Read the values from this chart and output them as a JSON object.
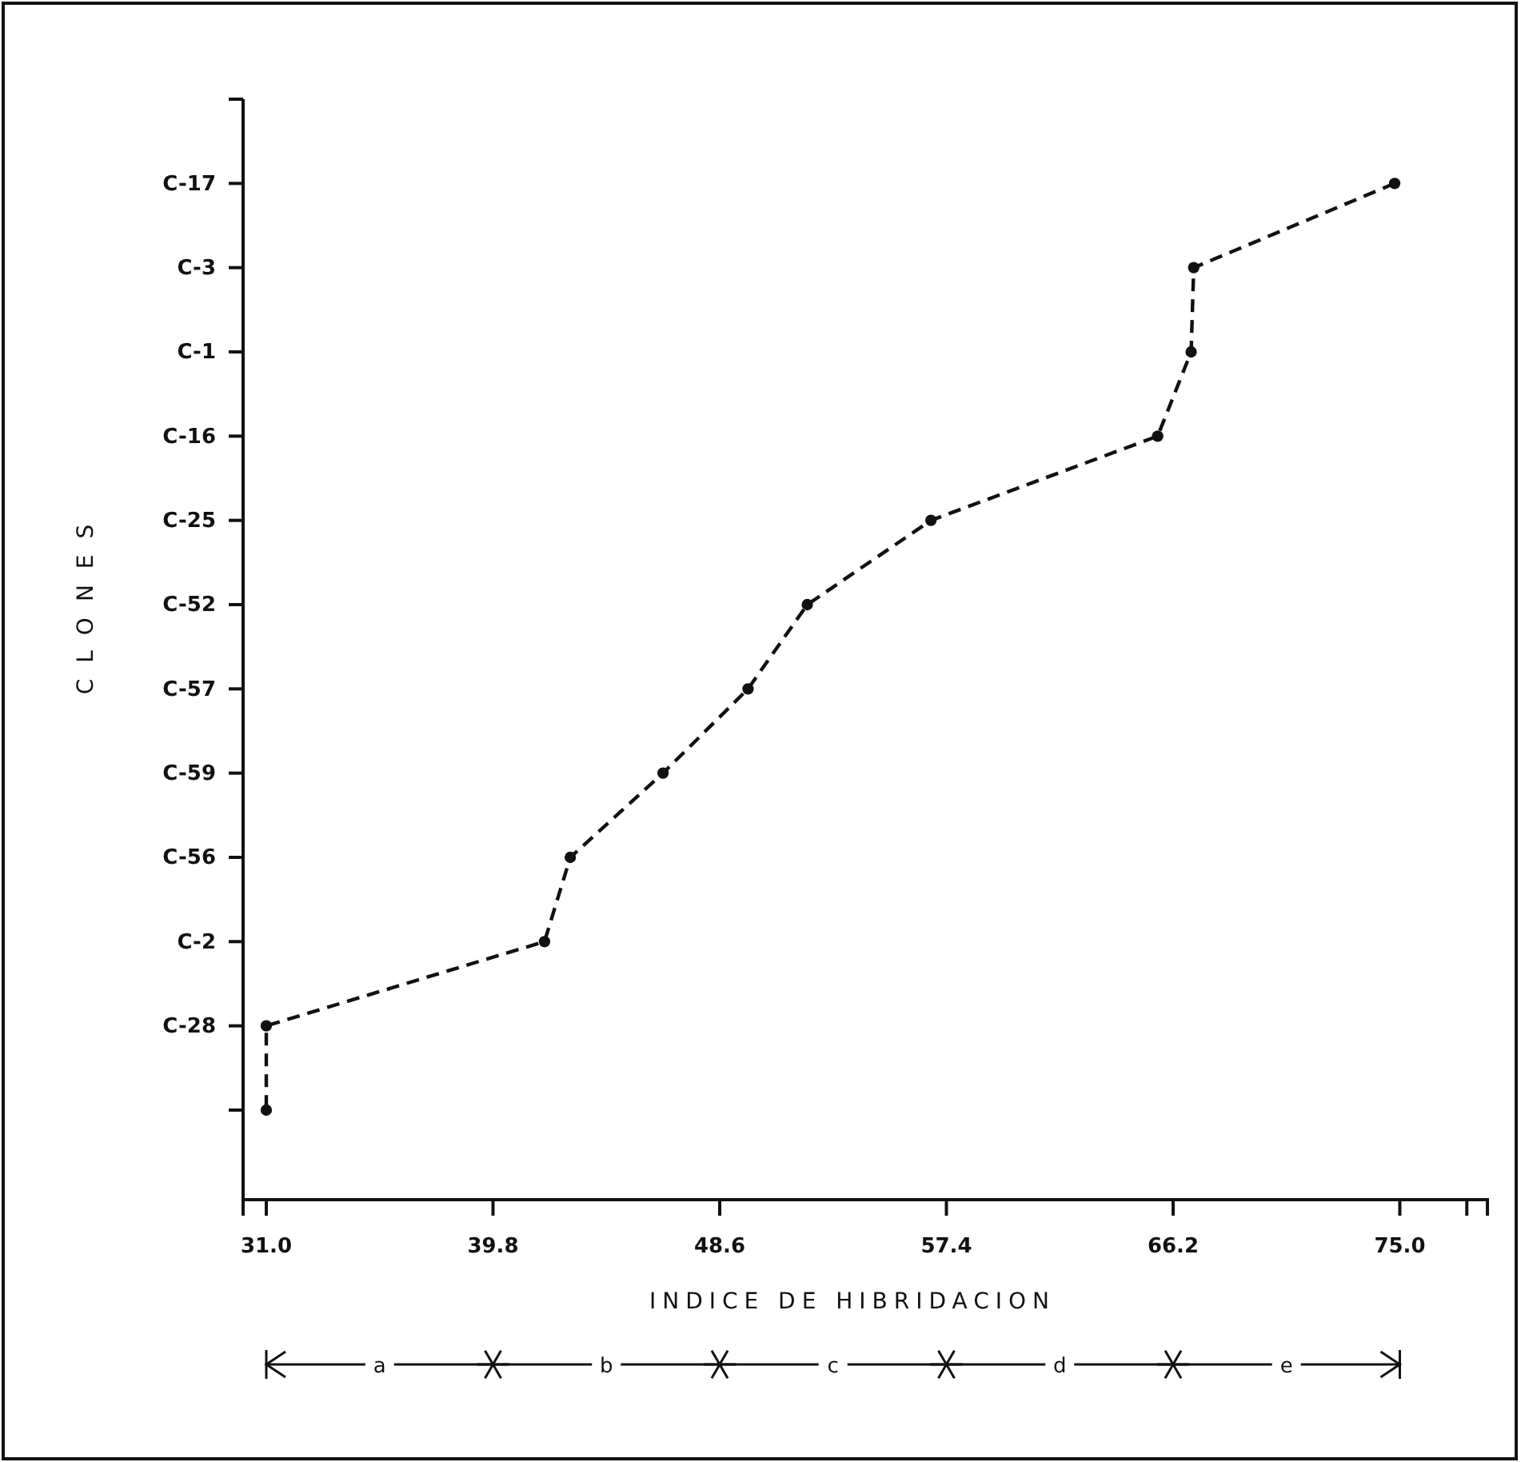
{
  "chart_data": {
    "type": "line",
    "orientation": "horizontal",
    "xlabel": "INDICE DE HIBRIDACION",
    "ylabel": "CLONES",
    "categories": [
      null,
      "C-17",
      "C-3",
      "C-1",
      "C-16",
      "C-25",
      "C-52",
      "C-57",
      "C-59",
      "C-56",
      "C-2",
      "C-28",
      null
    ],
    "series": [
      {
        "color": "#111111",
        "values": [
          null,
          74.8,
          67.0,
          66.9,
          65.6,
          56.8,
          52.0,
          49.7,
          46.4,
          42.8,
          41.8,
          31.0,
          31.0
        ]
      }
    ],
    "xlim": [
      30.1,
      78.4
    ],
    "xticks": [
      {
        "value": 31.0,
        "label": "31.0"
      },
      39.8,
      48.6,
      57.4,
      66.2,
      {
        "value": 75.0,
        "label": "75.0"
      },
      {
        "value": 77.6,
        "label": null
      }
    ],
    "annotations": [
      "a",
      "b",
      "c",
      "d",
      "e"
    ],
    "marker": "circle",
    "line_style": "dashed",
    "grid": false
  }
}
